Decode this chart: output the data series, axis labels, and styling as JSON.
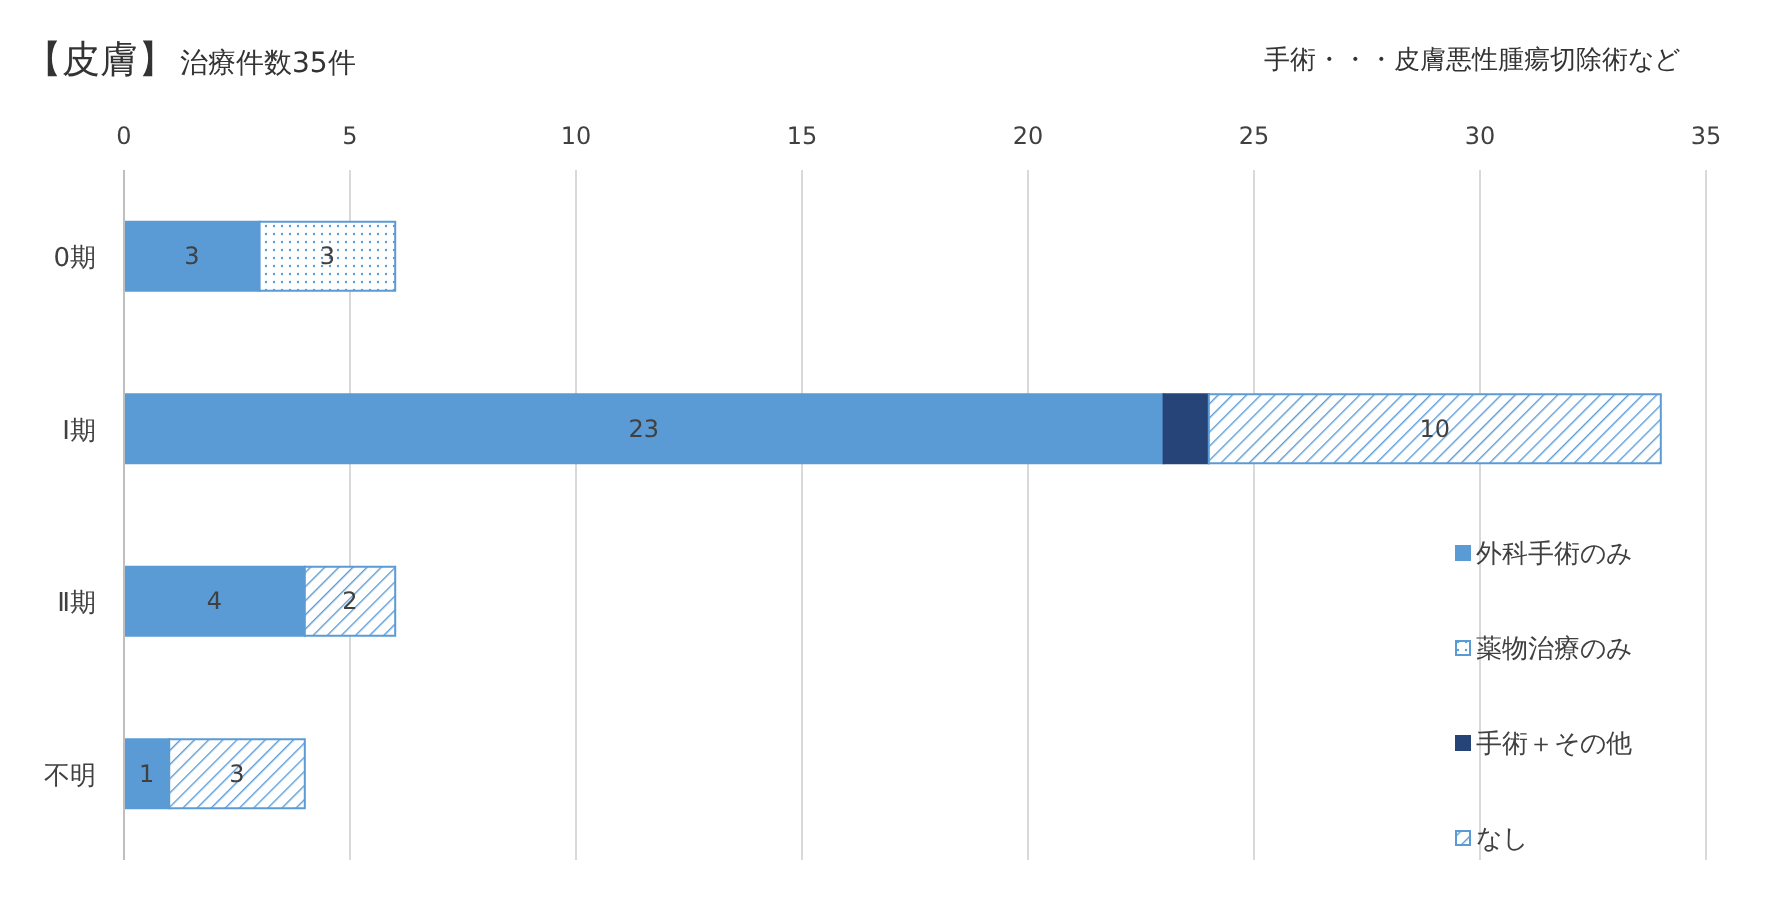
{
  "chart_data": {
    "type": "bar",
    "orientation": "horizontal",
    "stacked": true,
    "title": "【皮膚】",
    "subtitle": "治療件数35件",
    "annotations": [
      "手術・・・皮膚悪性腫瘍切除術など"
    ],
    "categories": [
      "0期",
      "Ⅰ期",
      "Ⅱ期",
      "不明"
    ],
    "series": [
      {
        "name": "外科手術のみ",
        "color": "#5b9bd5",
        "values": [
          3,
          23,
          4,
          1
        ],
        "value_labels": [
          "3",
          "23",
          "4",
          "1"
        ]
      },
      {
        "name": "薬物治療のみ",
        "color": "#5b9bd5",
        "values": [
          3,
          null,
          null,
          null
        ],
        "value_labels": [
          "3",
          null,
          null,
          null
        ]
      },
      {
        "name": "手術＋その他",
        "color": "#264478",
        "values": [
          null,
          1,
          null,
          null
        ]
      },
      {
        "name": "なし",
        "color": "#5b9bd5",
        "values": [
          null,
          10,
          2,
          3
        ],
        "value_labels": [
          null,
          "10",
          "2",
          "3"
        ]
      }
    ],
    "xlim": [
      0,
      35
    ],
    "xticks": [
      0,
      5,
      10,
      15,
      20,
      25,
      30,
      35
    ],
    "grid": "x",
    "legend": "bottom right"
  }
}
